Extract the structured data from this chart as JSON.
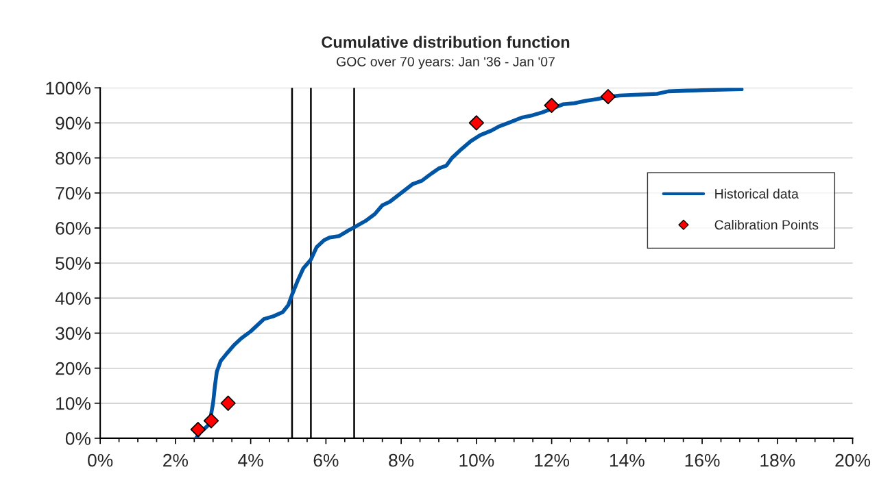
{
  "chart_data": {
    "type": "line",
    "title": "Cumulative distribution function",
    "subtitle": "GOC over 70 years: Jan '36 - Jan '07",
    "series": [
      {
        "name": "Historical data",
        "type": "line",
        "color": "#0055a5",
        "marker": "none",
        "line_style": "solid",
        "x": [
          2.55,
          2.65,
          2.8,
          2.9,
          3.0,
          3.05,
          3.1,
          3.2,
          3.35,
          3.55,
          3.75,
          4.0,
          4.2,
          4.35,
          4.6,
          4.85,
          5.0,
          5.1,
          5.25,
          5.4,
          5.6,
          5.75,
          5.95,
          6.1,
          6.35,
          6.55,
          6.8,
          7.05,
          7.3,
          7.5,
          7.7,
          8.0,
          8.3,
          8.55,
          8.8,
          9.0,
          9.2,
          9.35,
          9.6,
          9.85,
          10.1,
          10.4,
          10.6,
          10.9,
          11.2,
          11.5,
          11.75,
          12.3,
          12.6,
          12.9,
          13.2,
          13.5,
          13.8,
          14.2,
          14.8,
          15.1,
          15.6,
          16.3,
          17.05
        ],
        "values": [
          0,
          1.5,
          3,
          4,
          10,
          15,
          19,
          22,
          24,
          26.5,
          28.5,
          30.5,
          32.5,
          34,
          34.8,
          36,
          38,
          41,
          45,
          48.5,
          51,
          54.5,
          56.5,
          57.3,
          57.7,
          59,
          60.5,
          62,
          64,
          66.5,
          67.5,
          70,
          72.5,
          73.5,
          75.5,
          77,
          77.8,
          80,
          82.5,
          84.8,
          86.5,
          87.8,
          89,
          90.2,
          91.5,
          92.2,
          93,
          95.3,
          95.6,
          96.3,
          96.8,
          97.4,
          97.8,
          98.0,
          98.3,
          99,
          99.2,
          99.4,
          99.6
        ]
      },
      {
        "name": "Calibration Points",
        "type": "scatter",
        "color": "#ff0000",
        "marker": "diamond",
        "x": [
          2.6,
          2.95,
          3.4,
          10,
          12,
          13.5
        ],
        "values": [
          2.5,
          5,
          10,
          90,
          95,
          97.5
        ]
      }
    ],
    "ref_lines": [
      {
        "axis": "x",
        "value": 5.1,
        "color": "#000000"
      },
      {
        "axis": "x",
        "value": 5.6,
        "color": "#000000"
      },
      {
        "axis": "x",
        "value": 6.75,
        "color": "#000000"
      }
    ],
    "xlim": [
      0,
      20
    ],
    "ylim": [
      0,
      100
    ],
    "xticks": [
      {
        "value": 0,
        "label": "0%"
      },
      {
        "value": 0.5,
        "label": null
      },
      {
        "value": 1,
        "label": null
      },
      {
        "value": 1.5,
        "label": null
      },
      {
        "value": 2,
        "label": "2%"
      },
      {
        "value": 2.5,
        "label": null
      },
      {
        "value": 3,
        "label": null
      },
      {
        "value": 3.5,
        "label": null
      },
      {
        "value": 4,
        "label": "4%"
      },
      {
        "value": 4.5,
        "label": null
      },
      {
        "value": 5,
        "label": null
      },
      {
        "value": 5.5,
        "label": null
      },
      {
        "value": 6,
        "label": "6%"
      },
      {
        "value": 6.5,
        "label": null
      },
      {
        "value": 7,
        "label": null
      },
      {
        "value": 7.5,
        "label": null
      },
      {
        "value": 8,
        "label": "8%"
      },
      {
        "value": 8.5,
        "label": null
      },
      {
        "value": 9,
        "label": null
      },
      {
        "value": 9.5,
        "label": null
      },
      {
        "value": 10,
        "label": "10%"
      },
      {
        "value": 10.5,
        "label": null
      },
      {
        "value": 11,
        "label": null
      },
      {
        "value": 11.5,
        "label": null
      },
      {
        "value": 12,
        "label": "12%"
      },
      {
        "value": 12.5,
        "label": null
      },
      {
        "value": 13,
        "label": null
      },
      {
        "value": 13.5,
        "label": null
      },
      {
        "value": 14,
        "label": "14%"
      },
      {
        "value": 14.5,
        "label": null
      },
      {
        "value": 15,
        "label": null
      },
      {
        "value": 15.5,
        "label": null
      },
      {
        "value": 16,
        "label": "16%"
      },
      {
        "value": 16.5,
        "label": null
      },
      {
        "value": 17,
        "label": null
      },
      {
        "value": 17.5,
        "label": null
      },
      {
        "value": 18,
        "label": "18%"
      },
      {
        "value": 18.5,
        "label": null
      },
      {
        "value": 19,
        "label": null
      },
      {
        "value": 19.5,
        "label": null
      },
      {
        "value": 20,
        "label": "20%"
      }
    ],
    "yticks": [
      {
        "value": 0,
        "label": "0%"
      },
      {
        "value": 10,
        "label": "10%"
      },
      {
        "value": 20,
        "label": "20%"
      },
      {
        "value": 30,
        "label": "30%"
      },
      {
        "value": 40,
        "label": "40%"
      },
      {
        "value": 50,
        "label": "50%"
      },
      {
        "value": 60,
        "label": "60%"
      },
      {
        "value": 70,
        "label": "70%"
      },
      {
        "value": 80,
        "label": "80%"
      },
      {
        "value": 90,
        "label": "90%"
      },
      {
        "value": 100,
        "label": "100%"
      }
    ],
    "grid": "y",
    "legend": "center right"
  }
}
